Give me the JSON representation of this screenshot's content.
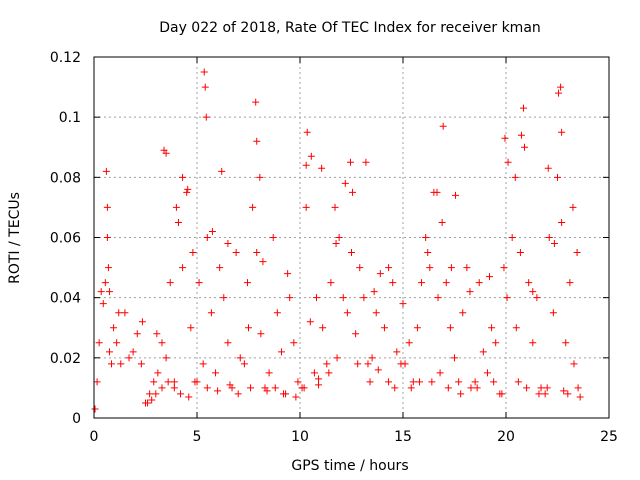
{
  "chart_data": {
    "type": "scatter",
    "title": "Day 022 of 2018, Rate Of TEC Index for receiver kman",
    "xlabel": "GPS time / hours",
    "ylabel": "ROTI / TECUs",
    "xlim": [
      0,
      25
    ],
    "ylim": [
      0,
      0.12
    ],
    "xticks": [
      0,
      5,
      10,
      15,
      20,
      25
    ],
    "xtick_labels": [
      "0",
      "5",
      "10",
      "15",
      "20",
      "25"
    ],
    "yticks": [
      0,
      0.02,
      0.04,
      0.06,
      0.08,
      0.1,
      0.12
    ],
    "ytick_labels": [
      "0",
      "0.02",
      "0.04",
      "0.06",
      "0.08",
      "0.1",
      "0.12"
    ],
    "grid": true,
    "marker": "plus",
    "series": [
      {
        "name": "ROTI",
        "color": "#ff0000",
        "x": [
          0.05,
          0.15,
          0.25,
          0.35,
          0.45,
          0.55,
          0.65,
          0.75,
          0.85,
          0.95,
          1.1,
          1.3,
          1.5,
          1.7,
          1.9,
          2.1,
          2.3,
          2.5,
          2.7,
          2.9,
          3.1,
          3.3,
          3.5,
          3.7,
          3.9,
          4.1,
          4.3,
          4.5,
          4.7,
          4.9,
          5.1,
          5.3,
          5.5,
          5.7,
          5.9,
          6.1,
          6.3,
          6.5,
          6.7,
          6.9,
          7.1,
          7.3,
          7.5,
          7.7,
          7.9,
          8.1,
          8.3,
          8.5,
          8.7,
          8.9,
          9.1,
          9.3,
          9.5,
          9.7,
          9.9,
          10.1,
          10.3,
          10.5,
          10.7,
          10.9,
          11.1,
          11.3,
          11.5,
          11.7,
          11.9,
          12.1,
          12.3,
          12.5,
          12.7,
          12.9,
          13.1,
          13.3,
          13.5,
          13.7,
          13.9,
          14.1,
          14.3,
          14.5,
          14.7,
          14.9,
          15.1,
          15.3,
          15.5,
          15.7,
          15.9,
          16.1,
          16.3,
          16.5,
          16.7,
          16.9,
          17.1,
          17.3,
          17.5,
          17.7,
          17.9,
          18.1,
          18.3,
          18.5,
          18.7,
          18.9,
          19.1,
          19.3,
          19.5,
          19.7,
          19.9,
          20.1,
          20.3,
          20.5,
          20.7,
          20.9,
          21.1,
          21.3,
          21.5,
          21.7,
          21.9,
          22.1,
          22.3,
          22.5,
          22.7,
          22.9,
          23.1,
          23.3,
          23.5,
          0.6,
          0.65,
          5.35,
          5.4,
          5.45,
          7.85,
          7.9,
          10.35,
          10.55,
          12.45,
          16.95,
          19.95,
          20.75,
          20.85,
          22.55,
          22.65,
          22.7,
          3.4,
          3.5,
          4.3,
          4.55,
          6.2,
          8.05,
          10.3,
          11.05,
          12.2,
          13.2,
          16.65,
          17.55,
          20.45,
          22.05,
          23.25,
          0.7,
          0.75,
          1.2,
          2.35,
          3.05,
          4.0,
          4.8,
          5.75,
          6.5,
          7.45,
          8.2,
          9.4,
          10.8,
          11.75,
          12.55,
          13.6,
          14.3,
          15.0,
          16.2,
          17.35,
          18.25,
          19.2,
          20.05,
          21.3,
          22.35,
          23.45,
          2.6,
          2.8,
          3.0,
          3.3,
          3.6,
          3.9,
          4.2,
          4.6,
          5.0,
          5.5,
          6.0,
          6.6,
          7.0,
          7.6,
          8.4,
          8.8,
          9.2,
          9.8,
          10.2,
          10.9,
          11.4,
          11.8,
          12.8,
          13.4,
          13.8,
          14.6,
          15.4,
          15.8,
          16.4,
          16.8,
          17.2,
          17.8,
          18.6,
          19.4,
          19.8,
          20.6,
          21.0,
          21.6,
          22.0,
          22.8,
          23.0,
          23.6
        ],
        "y": [
          0.003,
          0.012,
          0.025,
          0.042,
          0.038,
          0.045,
          0.06,
          0.022,
          0.018,
          0.03,
          0.025,
          0.018,
          0.035,
          0.02,
          0.022,
          0.028,
          0.018,
          0.005,
          0.008,
          0.012,
          0.015,
          0.025,
          0.02,
          0.045,
          0.012,
          0.065,
          0.05,
          0.075,
          0.03,
          0.012,
          0.045,
          0.018,
          0.06,
          0.035,
          0.015,
          0.05,
          0.04,
          0.025,
          0.01,
          0.055,
          0.02,
          0.018,
          0.03,
          0.07,
          0.055,
          0.028,
          0.01,
          0.015,
          0.06,
          0.035,
          0.022,
          0.008,
          0.04,
          0.025,
          0.012,
          0.01,
          0.07,
          0.032,
          0.015,
          0.011,
          0.03,
          0.018,
          0.045,
          0.07,
          0.06,
          0.04,
          0.035,
          0.055,
          0.028,
          0.05,
          0.04,
          0.018,
          0.02,
          0.035,
          0.048,
          0.03,
          0.012,
          0.045,
          0.022,
          0.018,
          0.018,
          0.025,
          0.012,
          0.03,
          0.045,
          0.06,
          0.05,
          0.075,
          0.04,
          0.065,
          0.045,
          0.03,
          0.02,
          0.012,
          0.035,
          0.05,
          0.01,
          0.012,
          0.045,
          0.022,
          0.015,
          0.03,
          0.025,
          0.008,
          0.05,
          0.085,
          0.06,
          0.03,
          0.055,
          0.09,
          0.045,
          0.025,
          0.04,
          0.01,
          0.008,
          0.06,
          0.035,
          0.08,
          0.065,
          0.025,
          0.045,
          0.018,
          0.01,
          0.082,
          0.07,
          0.115,
          0.11,
          0.1,
          0.105,
          0.092,
          0.095,
          0.087,
          0.085,
          0.097,
          0.093,
          0.094,
          0.103,
          0.108,
          0.11,
          0.095,
          0.089,
          0.088,
          0.08,
          0.076,
          0.082,
          0.08,
          0.084,
          0.083,
          0.078,
          0.085,
          0.075,
          0.074,
          0.08,
          0.083,
          0.07,
          0.05,
          0.042,
          0.035,
          0.032,
          0.028,
          0.07,
          0.055,
          0.062,
          0.058,
          0.045,
          0.052,
          0.048,
          0.04,
          0.058,
          0.075,
          0.042,
          0.05,
          0.038,
          0.055,
          0.05,
          0.042,
          0.047,
          0.04,
          0.042,
          0.058,
          0.055,
          0.005,
          0.006,
          0.008,
          0.01,
          0.012,
          0.01,
          0.008,
          0.007,
          0.012,
          0.01,
          0.009,
          0.011,
          0.008,
          0.01,
          0.009,
          0.01,
          0.008,
          0.007,
          0.01,
          0.013,
          0.015,
          0.02,
          0.018,
          0.012,
          0.016,
          0.01,
          0.01,
          0.012,
          0.012,
          0.015,
          0.01,
          0.008,
          0.01,
          0.012,
          0.008,
          0.012,
          0.01,
          0.008,
          0.01,
          0.009,
          0.008,
          0.007
        ]
      }
    ]
  }
}
